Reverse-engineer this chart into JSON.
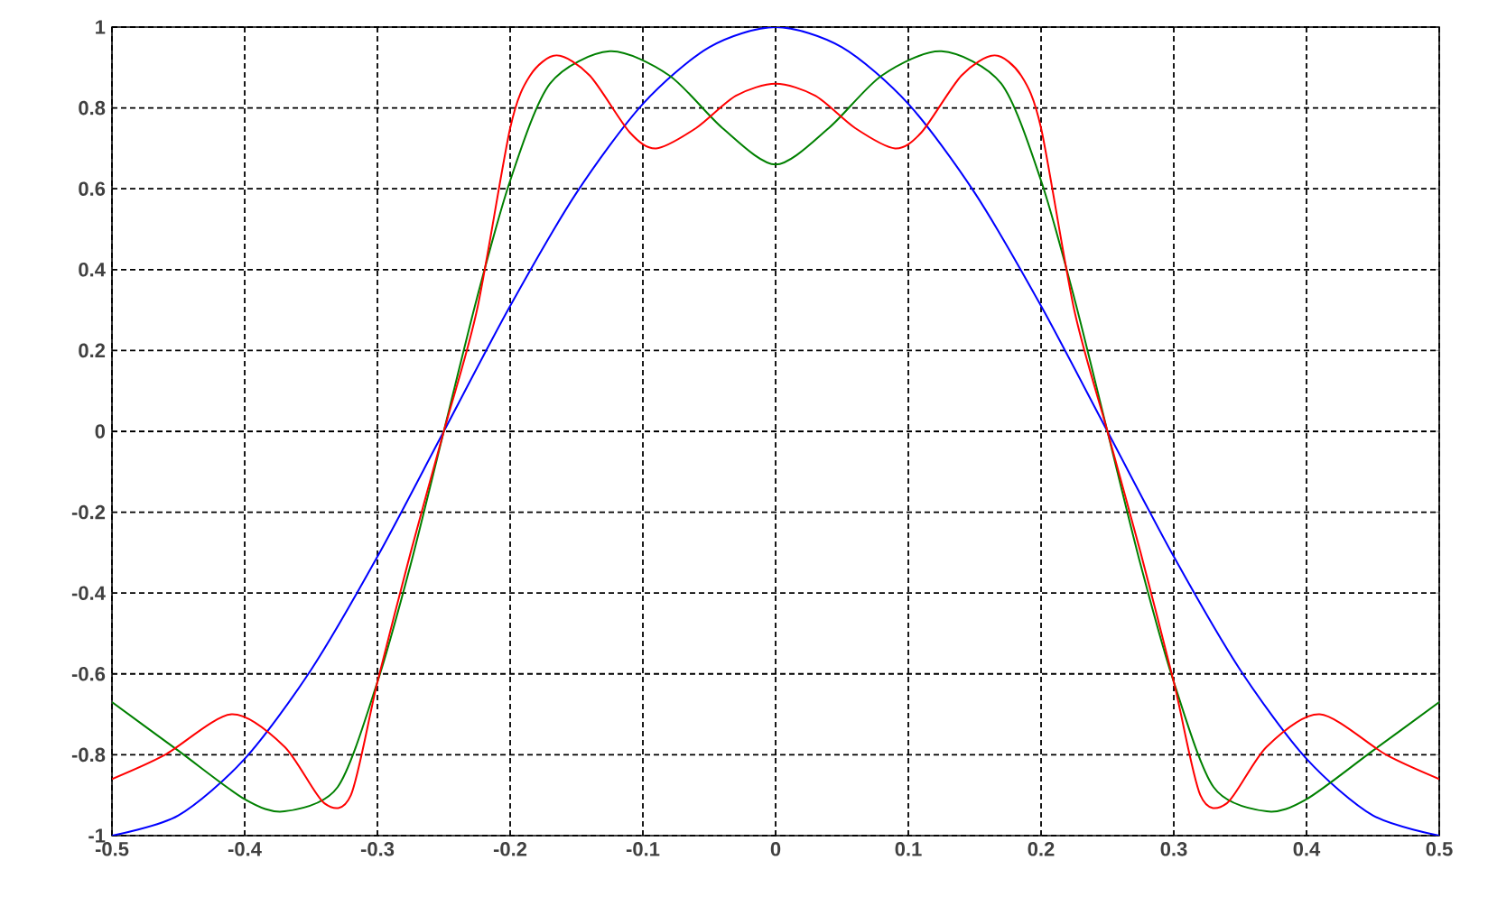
{
  "chart_data": {
    "type": "line",
    "xlim": [
      -0.5,
      0.5
    ],
    "ylim": [
      -1,
      1
    ],
    "xticks": [
      -0.5,
      -0.4,
      -0.3,
      -0.2,
      -0.1,
      0,
      0.1,
      0.2,
      0.3,
      0.4,
      0.5
    ],
    "yticks": [
      -1,
      -0.8,
      -0.6,
      -0.4,
      -0.2,
      0,
      0.2,
      0.4,
      0.6,
      0.8,
      1
    ],
    "grid": true,
    "marker": "none",
    "line_style": "solid",
    "series": [
      {
        "color": "#0000ff",
        "x": [
          -0.5,
          -0.45,
          -0.4,
          -0.35,
          -0.3,
          -0.25,
          -0.2,
          -0.15,
          -0.1,
          -0.05,
          0,
          0.05,
          0.1,
          0.15,
          0.2,
          0.25,
          0.3,
          0.35,
          0.4,
          0.45,
          0.5
        ],
        "values": [
          -1,
          -0.95,
          -0.81,
          -0.59,
          -0.31,
          0,
          0.31,
          0.59,
          0.81,
          0.95,
          1,
          0.95,
          0.81,
          0.59,
          0.31,
          0,
          -0.31,
          -0.59,
          -0.81,
          -0.95,
          -1
        ]
      },
      {
        "color": "#008000",
        "x": [
          -0.5,
          -0.45,
          -0.4,
          -0.37,
          -0.33,
          -0.3,
          -0.275,
          -0.25,
          -0.225,
          -0.2,
          -0.17,
          -0.125,
          -0.08,
          -0.04,
          0,
          0.04,
          0.08,
          0.125,
          0.17,
          0.2,
          0.225,
          0.25,
          0.275,
          0.3,
          0.33,
          0.37,
          0.4,
          0.45,
          0.5
        ],
        "values": [
          -0.67,
          -0.79,
          -0.91,
          -0.94,
          -0.88,
          -0.62,
          -0.33,
          0,
          0.33,
          0.62,
          0.86,
          0.94,
          0.88,
          0.75,
          0.66,
          0.75,
          0.88,
          0.94,
          0.86,
          0.62,
          0.33,
          0,
          -0.33,
          -0.62,
          -0.88,
          -0.94,
          -0.91,
          -0.79,
          -0.67
        ]
      },
      {
        "color": "#ff0000",
        "x": [
          -0.5,
          -0.46,
          -0.41,
          -0.37,
          -0.34,
          -0.32,
          -0.3,
          -0.275,
          -0.25,
          -0.225,
          -0.2,
          -0.185,
          -0.165,
          -0.14,
          -0.11,
          -0.09,
          -0.06,
          -0.03,
          0,
          0.03,
          0.06,
          0.09,
          0.11,
          0.14,
          0.165,
          0.185,
          0.2,
          0.225,
          0.25,
          0.275,
          0.3,
          0.32,
          0.34,
          0.37,
          0.41,
          0.46,
          0.5
        ],
        "values": [
          -0.86,
          -0.8,
          -0.7,
          -0.78,
          -0.92,
          -0.9,
          -0.62,
          -0.3,
          0,
          0.3,
          0.75,
          0.88,
          0.93,
          0.88,
          0.74,
          0.7,
          0.75,
          0.83,
          0.86,
          0.83,
          0.75,
          0.7,
          0.74,
          0.88,
          0.93,
          0.88,
          0.75,
          0.3,
          0,
          -0.3,
          -0.62,
          -0.9,
          -0.92,
          -0.78,
          -0.7,
          -0.8,
          -0.86
        ]
      }
    ]
  }
}
